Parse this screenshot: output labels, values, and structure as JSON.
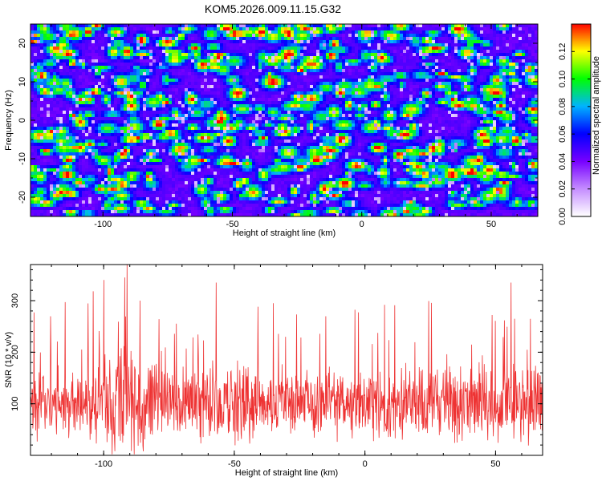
{
  "title": "KOM5.2026.009.11.15.G32",
  "chart_data": [
    {
      "type": "heatmap",
      "title": "KOM5.2026.009.11.15.G32",
      "xlabel": "Height of straight line (km)",
      "ylabel": "Frequency (Hz)",
      "xlim": [
        -128,
        68
      ],
      "ylim": [
        -25,
        25
      ],
      "xticks": [
        -100,
        -50,
        0,
        50
      ],
      "yticks": [
        -20,
        -10,
        0,
        10,
        20
      ],
      "colorbar": {
        "label": "Normalized spectral amplitude",
        "range": [
          0.0,
          0.14
        ],
        "ticks": [
          "0.00",
          "0.02",
          "0.04",
          "0.06",
          "0.08",
          "0.10",
          "0.12"
        ],
        "colors": [
          "#ffffff",
          "#c48cff",
          "#7700ff",
          "#0000ff",
          "#00b4ff",
          "#00ff00",
          "#ffff00",
          "#ff0000"
        ]
      },
      "peaks": [
        {
          "x": 42,
          "y": 20,
          "v": 0.13
        },
        {
          "x": 58,
          "y": 12,
          "v": 0.13
        },
        {
          "x": -70,
          "y": 0,
          "v": 0.09
        },
        {
          "x": -88,
          "y": -17,
          "v": 0.06
        }
      ]
    },
    {
      "type": "line",
      "xlabel": "Height of straight line (km)",
      "ylabel": "SNR (10 * v/v)",
      "xlim": [
        -128,
        68
      ],
      "ylim": [
        0,
        370
      ],
      "xticks": [
        -100,
        -50,
        0,
        50
      ],
      "yticks": [
        100,
        200,
        300
      ],
      "series": [
        {
          "name": "SNR",
          "color": "#ee3333",
          "baseline": 100,
          "spikes": [
            {
              "x": -91,
              "y": 370
            },
            {
              "x": -92,
              "y": 345
            },
            {
              "x": -100,
              "y": 340
            },
            {
              "x": -57,
              "y": 335
            },
            {
              "x": 56,
              "y": 335
            },
            {
              "x": -104,
              "y": 318
            },
            {
              "x": -86,
              "y": 300
            },
            {
              "x": -35,
              "y": 295
            }
          ]
        }
      ]
    }
  ]
}
